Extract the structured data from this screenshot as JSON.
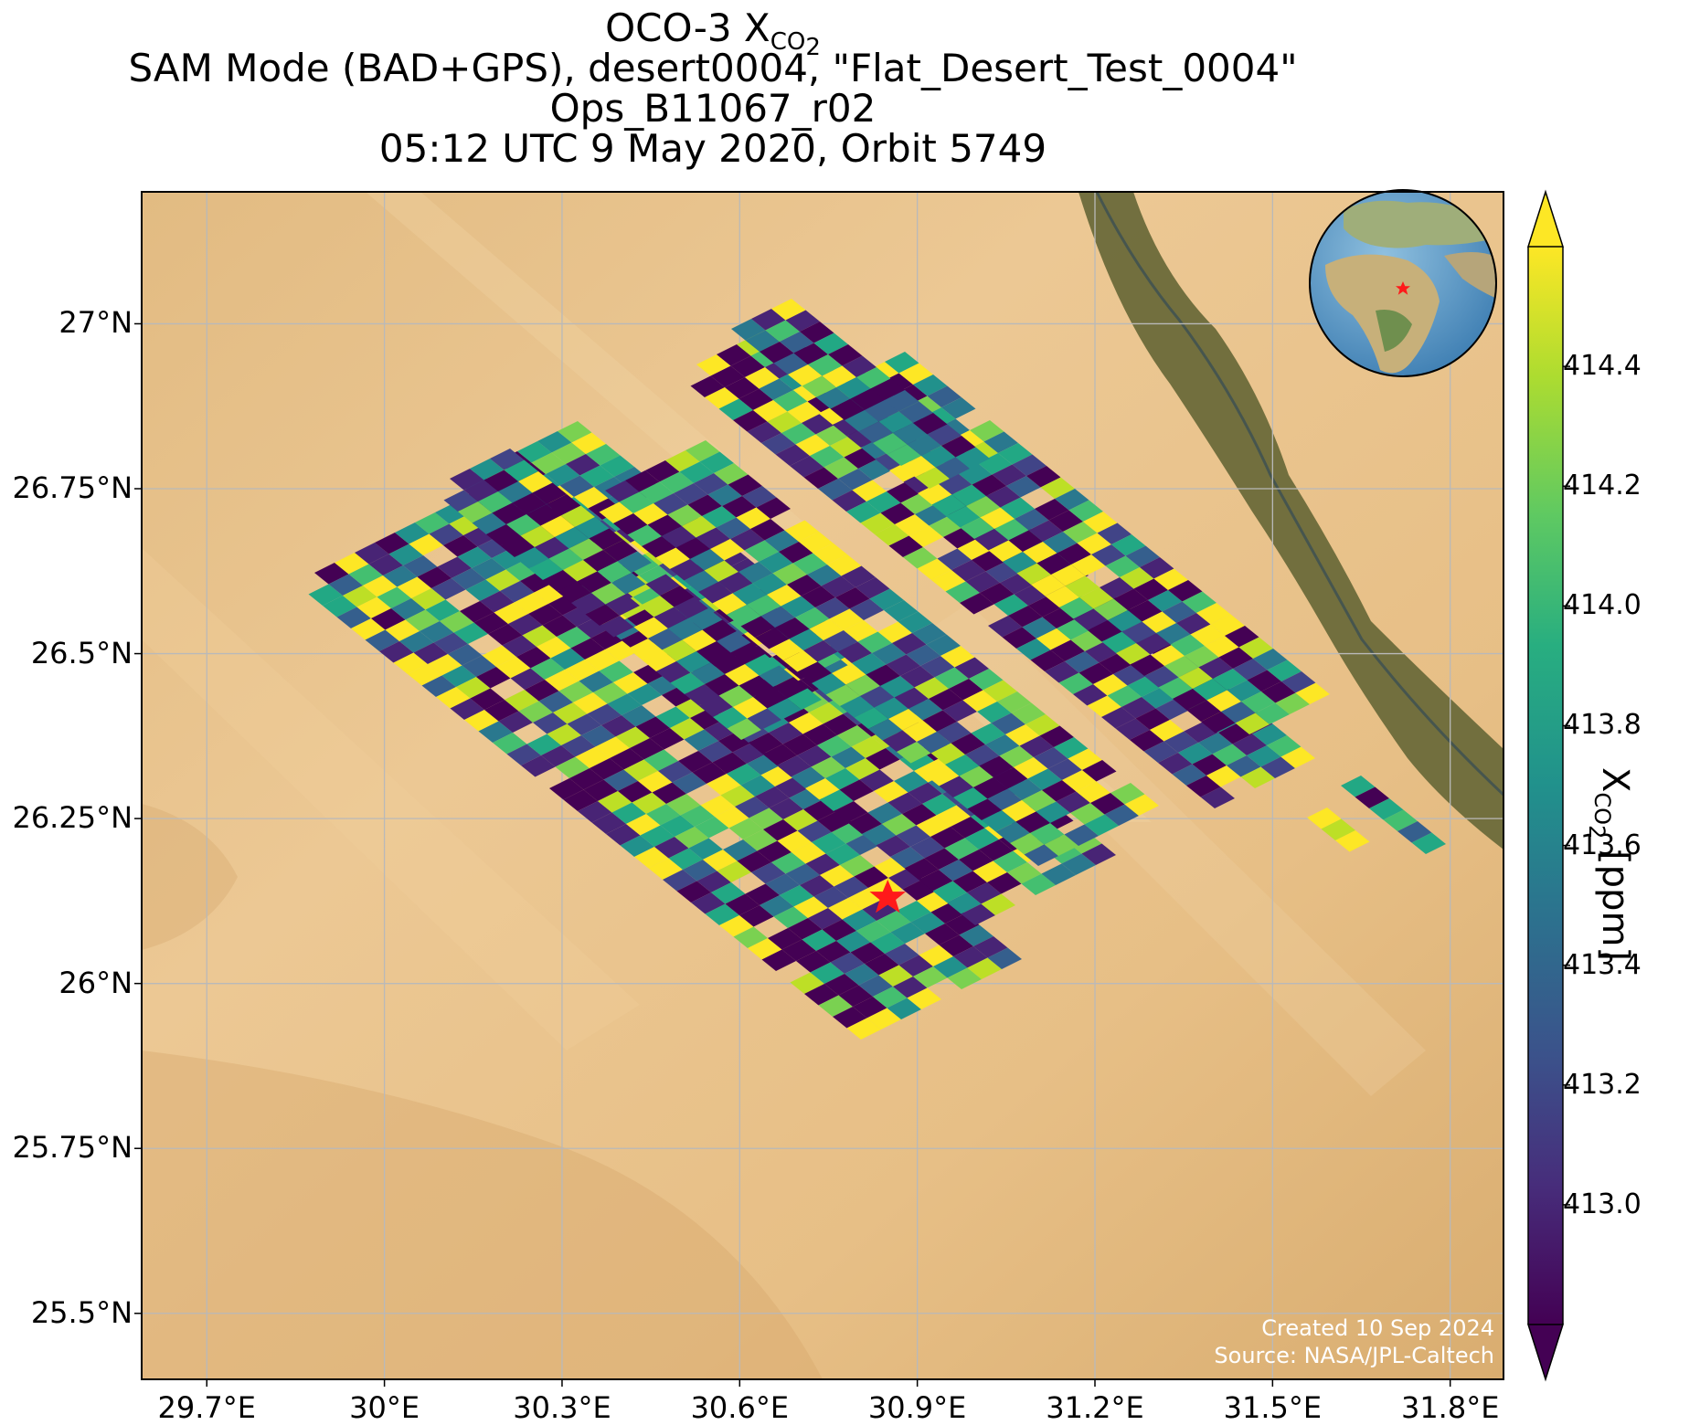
{
  "title": {
    "line1_prefix": "OCO-3 X",
    "line1_sub": "CO",
    "line1_subsub": "2",
    "line2": "SAM Mode (BAD+GPS), desert0004, \"Flat_Desert_Test_0004\"",
    "line3": "Ops_B11067_r02",
    "line4": "05:12 UTC 9 May 2020, Orbit 5749"
  },
  "map": {
    "lon_ticks": [
      "29.7°E",
      "30°E",
      "30.3°E",
      "30.6°E",
      "30.9°E",
      "31.2°E",
      "31.5°E",
      "31.8°E"
    ],
    "lon_values": [
      29.7,
      30.0,
      30.3,
      30.6,
      30.9,
      31.2,
      31.5,
      31.8
    ],
    "lat_ticks": [
      "27°N",
      "26.75°N",
      "26.5°N",
      "26.25°N",
      "26°N",
      "25.75°N",
      "25.5°N"
    ],
    "lat_values": [
      27.0,
      26.75,
      26.5,
      26.25,
      26.0,
      25.75,
      25.5
    ],
    "lon_range": [
      29.59,
      31.89
    ],
    "lat_range": [
      25.4,
      27.2
    ],
    "target": {
      "lon": 30.85,
      "lat": 26.13,
      "marker": "red-star"
    },
    "inset": "globe-locator-icon",
    "background": "satellite-imagery-desert-nile-valley"
  },
  "colorbar": {
    "label_prefix": "X",
    "label_sub": "CO",
    "label_subsub": "2",
    "label_suffix": " [ppm]",
    "ticks": [
      "414.4",
      "414.2",
      "414.0",
      "413.8",
      "413.6",
      "413.4",
      "413.2",
      "413.0"
    ],
    "tick_values": [
      414.4,
      414.2,
      414.0,
      413.8,
      413.6,
      413.4,
      413.2,
      413.0
    ],
    "range": [
      412.8,
      414.6
    ],
    "colormap": "viridis",
    "extend": "both"
  },
  "credit": {
    "line1": "Created 10 Sep 2024",
    "line2": "Source: NASA/JPL-Caltech"
  }
}
